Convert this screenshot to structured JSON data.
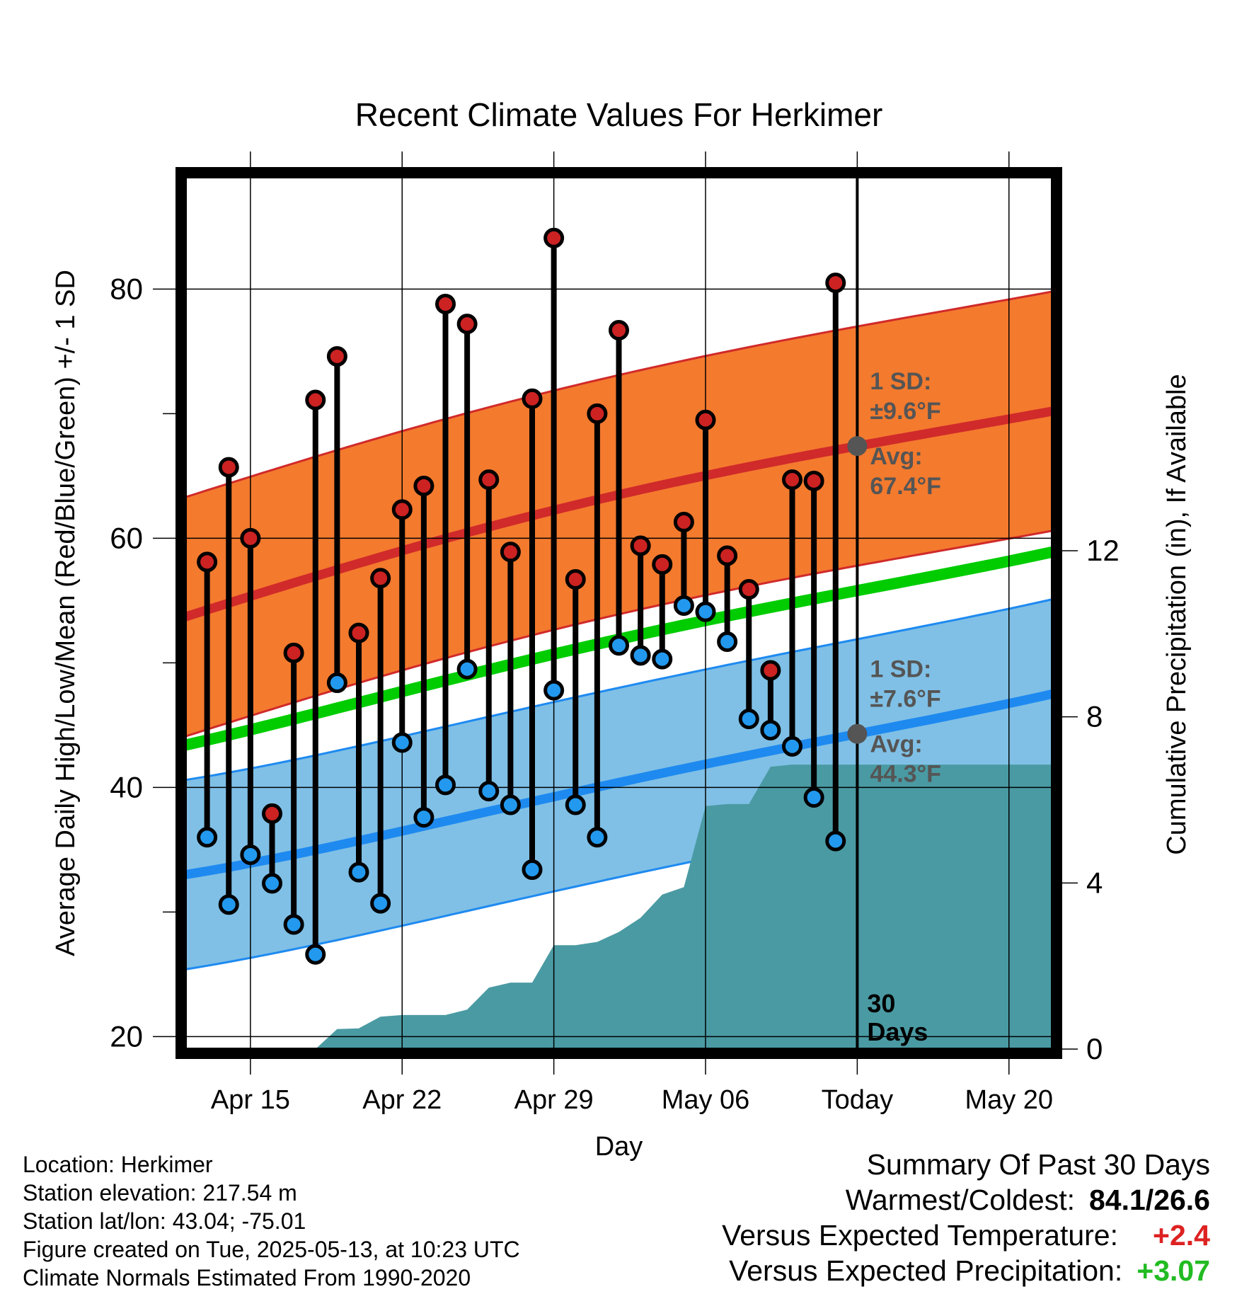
{
  "chart_data": {
    "type": "line",
    "title": "Recent Climate Values For Herkimer",
    "xlabel": "Day",
    "ylabel_left": "Average Daily High/Low/Mean (Red/Blue/Green) +/- 1 SD",
    "ylabel_right": "Cumulative Precipitation (in), If Available",
    "x_tick_labels": [
      "Apr 15",
      "Apr 22",
      "Apr 29",
      "May 06",
      "Today",
      "May 20"
    ],
    "y_left_ticks": [
      "20",
      "40",
      "60",
      "80"
    ],
    "y_right_ticks": [
      "0",
      "4",
      "8",
      "12"
    ],
    "ylim_left": [
      19,
      89
    ],
    "ylim_right": [
      0,
      21
    ],
    "xlim": [
      "Apr 12",
      "May 22"
    ],
    "today": "May 13",
    "period_label": [
      "30",
      "Days"
    ],
    "days": [
      "Apr 13",
      "Apr 14",
      "Apr 15",
      "Apr 16",
      "Apr 17",
      "Apr 18",
      "Apr 19",
      "Apr 20",
      "Apr 21",
      "Apr 22",
      "Apr 23",
      "Apr 24",
      "Apr 25",
      "Apr 26",
      "Apr 27",
      "Apr 28",
      "Apr 29",
      "Apr 30",
      "May 01",
      "May 02",
      "May 03",
      "May 04",
      "May 05",
      "May 06",
      "May 07",
      "May 08",
      "May 09",
      "May 10",
      "May 11",
      "May 12"
    ],
    "daily_high": [
      58.1,
      65.7,
      60.0,
      37.9,
      50.8,
      71.1,
      74.6,
      52.4,
      56.8,
      62.3,
      64.2,
      78.8,
      77.2,
      64.7,
      58.9,
      71.2,
      84.1,
      56.7,
      70.0,
      76.7,
      59.4,
      57.9,
      61.3,
      69.5,
      58.6,
      55.9,
      49.4,
      64.7,
      64.6,
      80.5
    ],
    "daily_low": [
      36.0,
      30.6,
      34.6,
      32.3,
      29.0,
      26.6,
      48.4,
      33.2,
      30.7,
      43.6,
      37.6,
      40.2,
      49.5,
      39.7,
      38.6,
      33.4,
      47.8,
      38.6,
      36.0,
      51.4,
      50.6,
      50.3,
      54.6,
      54.1,
      51.7,
      45.5,
      44.6,
      43.3,
      39.2,
      35.7
    ],
    "normal_high": {
      "x": [
        "Apr 12",
        "Apr 22",
        "May 02",
        "May 13",
        "May 22"
      ],
      "mean": [
        53.7,
        59.0,
        63.5,
        67.4,
        70.2
      ],
      "sd": 9.6
    },
    "normal_low": {
      "x": [
        "Apr 12",
        "Apr 22",
        "May 02",
        "May 13",
        "May 22"
      ],
      "mean": [
        33.0,
        36.5,
        40.4,
        44.3,
        47.5
      ],
      "sd": 7.6
    },
    "normal_mean": {
      "x": [
        "Apr 12",
        "Apr 22",
        "May 02",
        "May 13",
        "May 22"
      ],
      "values": [
        43.4,
        47.7,
        51.9,
        55.8,
        58.9
      ]
    },
    "cumulative_precip": {
      "x": [
        "Apr 18",
        "Apr 19",
        "Apr 20",
        "Apr 21",
        "Apr 22",
        "Apr 23",
        "Apr 24",
        "Apr 25",
        "Apr 26",
        "Apr 27",
        "Apr 28",
        "Apr 29",
        "Apr 30",
        "May 01",
        "May 02",
        "May 03",
        "May 04",
        "May 05",
        "May 06",
        "May 07",
        "May 08",
        "May 09",
        "May 10",
        "May 22"
      ],
      "values": [
        0.0,
        0.48,
        0.5,
        0.78,
        0.82,
        0.82,
        0.82,
        0.95,
        1.48,
        1.6,
        1.6,
        2.5,
        2.5,
        2.58,
        2.82,
        3.16,
        3.72,
        3.9,
        5.85,
        5.9,
        5.9,
        6.8,
        6.85,
        6.85
      ]
    },
    "annotations": {
      "high_sd_label": "1 SD:",
      "high_sd_value": "±9.6°F",
      "high_avg_label": "Avg:",
      "high_avg_value": "67.4°F",
      "low_sd_label": "1 SD:",
      "low_sd_value": "±7.6°F",
      "low_avg_label": "Avg:",
      "low_avg_value": "44.3°F"
    },
    "colors": {
      "high_band": "#f47a2e",
      "high_line": "#d02a2a",
      "low_band": "#80c0e6",
      "low_line": "#1e8af0",
      "mean_line": "#00cc00",
      "precip": "#4a9aa3",
      "high_dot": "#cc2222",
      "low_dot": "#2299ee",
      "marker": "#555555"
    },
    "grid": true
  },
  "footer": {
    "location": "Location: Herkimer",
    "elevation": "Station elevation: 217.54 m",
    "latlon": "Station lat/lon: 43.04; -75.01",
    "created": "Figure created on Tue, 2025-05-13, at 10:23 UTC",
    "normals": "Climate Normals Estimated From 1990-2020"
  },
  "summary": {
    "title": "Summary Of Past 30 Days",
    "warmest_label": "Warmest/Coldest:",
    "warmest_value": "84.1/26.6",
    "temp_label": "Versus Expected Temperature:",
    "temp_value": "+2.4",
    "temp_color": "#dd2222",
    "precip_label": "Versus Expected Precipitation:",
    "precip_value": "+3.07",
    "precip_color": "#22bb22"
  }
}
